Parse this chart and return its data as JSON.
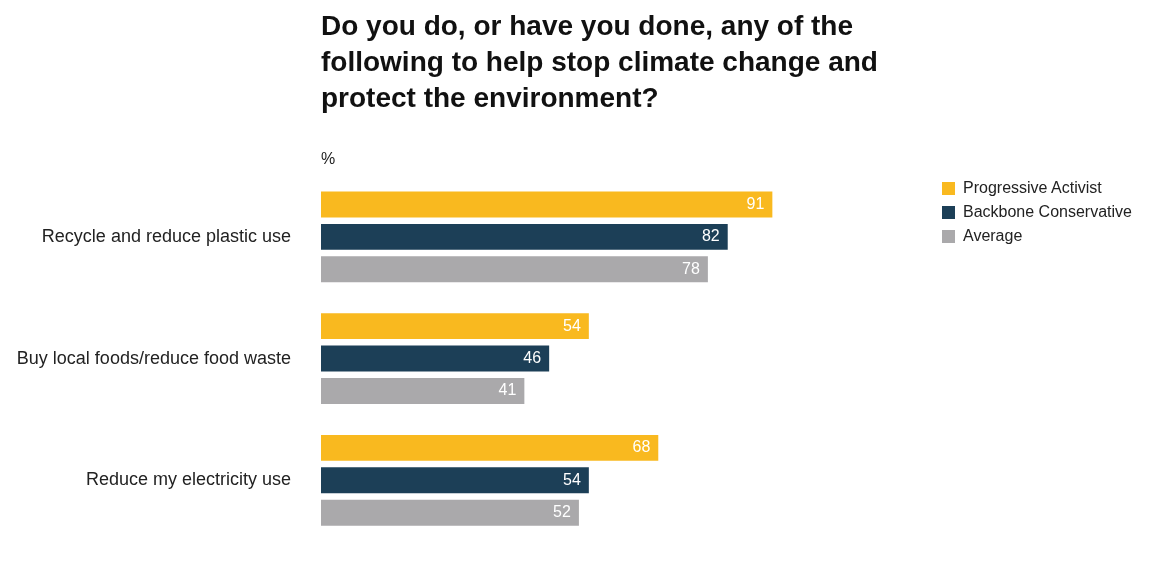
{
  "chart_data": {
    "type": "bar",
    "orientation": "horizontal",
    "title": "Do you do, or have you done, any of the following to help stop climate change and protect the environment?",
    "annotations": [
      "%"
    ],
    "categories": [
      "Recycle and reduce plastic use",
      "Buy local foods/reduce food waste",
      "Reduce my electricity use"
    ],
    "series": [
      {
        "name": "Progressive Activist",
        "color": "#f9b91f",
        "values": [
          91,
          54,
          68
        ]
      },
      {
        "name": "Backbone Conservative",
        "color": "#1c3f57",
        "values": [
          82,
          46,
          54
        ]
      },
      {
        "name": "Average",
        "color": "#aaa9ab",
        "values": [
          78,
          41,
          52
        ]
      }
    ],
    "data_labels": true,
    "legend": "right"
  }
}
